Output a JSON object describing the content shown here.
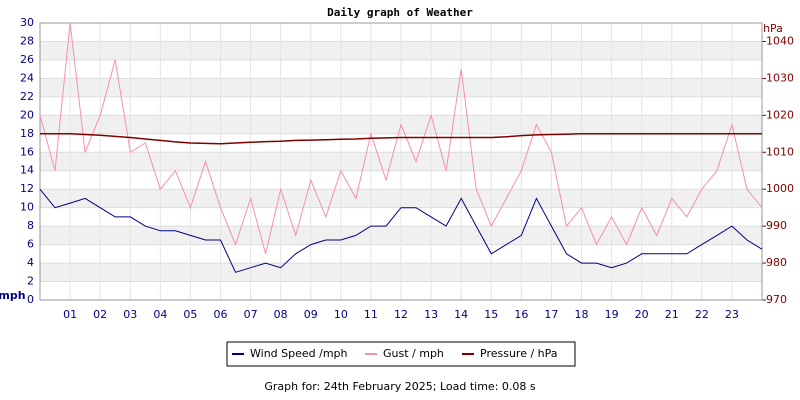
{
  "chart_data": {
    "type": "line",
    "title": "Daily graph of Weather",
    "ylabel": "mph",
    "y2label": "hPa",
    "footer": "Graph for: 24th February 2025; Load time: 0.08 s",
    "x": [
      0,
      0.5,
      1,
      1.5,
      2,
      2.5,
      3,
      3.5,
      4,
      4.5,
      5,
      5.5,
      6,
      6.5,
      7,
      7.5,
      8,
      8.5,
      9,
      9.5,
      10,
      10.5,
      11,
      11.5,
      12,
      12.5,
      13,
      13.5,
      14,
      14.5,
      15,
      15.5,
      16,
      16.5,
      17,
      17.5,
      18,
      18.5,
      19,
      19.5,
      20,
      20.5,
      21,
      21.5,
      22,
      22.5,
      23,
      23.5,
      24
    ],
    "xlim": [
      0,
      24
    ],
    "xticks": [
      {
        "value": 1,
        "label": "01"
      },
      {
        "value": 2,
        "label": "02"
      },
      {
        "value": 3,
        "label": "03"
      },
      {
        "value": 4,
        "label": "04"
      },
      {
        "value": 5,
        "label": "05"
      },
      {
        "value": 6,
        "label": "06"
      },
      {
        "value": 7,
        "label": "07"
      },
      {
        "value": 8,
        "label": "08"
      },
      {
        "value": 9,
        "label": "09"
      },
      10,
      11,
      12,
      13,
      14,
      15,
      16,
      17,
      18,
      19,
      20,
      21,
      22,
      23
    ],
    "ylim": [
      0,
      30
    ],
    "yticks": [
      0,
      2,
      4,
      6,
      8,
      10,
      12,
      14,
      16,
      18,
      20,
      22,
      24,
      26,
      28,
      30
    ],
    "y2lim": [
      970,
      1045
    ],
    "y2ticks": [
      970,
      980,
      990,
      1000,
      1010,
      1020,
      1030,
      1040
    ],
    "grid": true,
    "legend": "bottom",
    "series": [
      {
        "name": "Wind Speed /mph",
        "color": "#000080",
        "values": [
          12,
          10,
          10.5,
          11,
          10,
          9,
          9,
          8,
          7.5,
          7.5,
          7,
          6.5,
          6.5,
          3,
          3.5,
          4,
          3.5,
          5,
          6,
          6.5,
          6.5,
          7,
          8,
          8,
          10,
          10,
          9,
          8,
          11,
          8,
          5,
          6,
          7,
          11,
          8,
          5,
          4,
          4,
          3.5,
          4,
          5,
          5,
          5,
          5,
          6,
          7,
          8,
          6.5,
          5.5
        ]
      },
      {
        "name": "Gust / mph",
        "color": "#f58fb0",
        "values": [
          20,
          14,
          30,
          16,
          20,
          26,
          16,
          17,
          12,
          14,
          10,
          15,
          10,
          6,
          11,
          5,
          12,
          7,
          13,
          9,
          14,
          11,
          18,
          13,
          19,
          15,
          20,
          14,
          25,
          12,
          8,
          11,
          14,
          19,
          16,
          8,
          10,
          6,
          9,
          6,
          10,
          7,
          11,
          9,
          12,
          14,
          19,
          12,
          10
        ]
      },
      {
        "name": "Pressure / hPa",
        "color": "#800000",
        "axis": "y2",
        "values": [
          1015,
          1015,
          1015,
          1014.8,
          1014.6,
          1014.3,
          1014,
          1013.6,
          1013.2,
          1012.8,
          1012.5,
          1012.4,
          1012.3,
          1012.5,
          1012.7,
          1012.9,
          1013,
          1013.2,
          1013.3,
          1013.4,
          1013.5,
          1013.6,
          1013.8,
          1013.9,
          1014,
          1014,
          1014,
          1014,
          1014,
          1014,
          1014,
          1014.2,
          1014.5,
          1014.7,
          1014.8,
          1014.9,
          1015,
          1015,
          1015,
          1015,
          1015,
          1015,
          1015,
          1015,
          1015,
          1015,
          1015,
          1015,
          1015
        ]
      }
    ]
  }
}
